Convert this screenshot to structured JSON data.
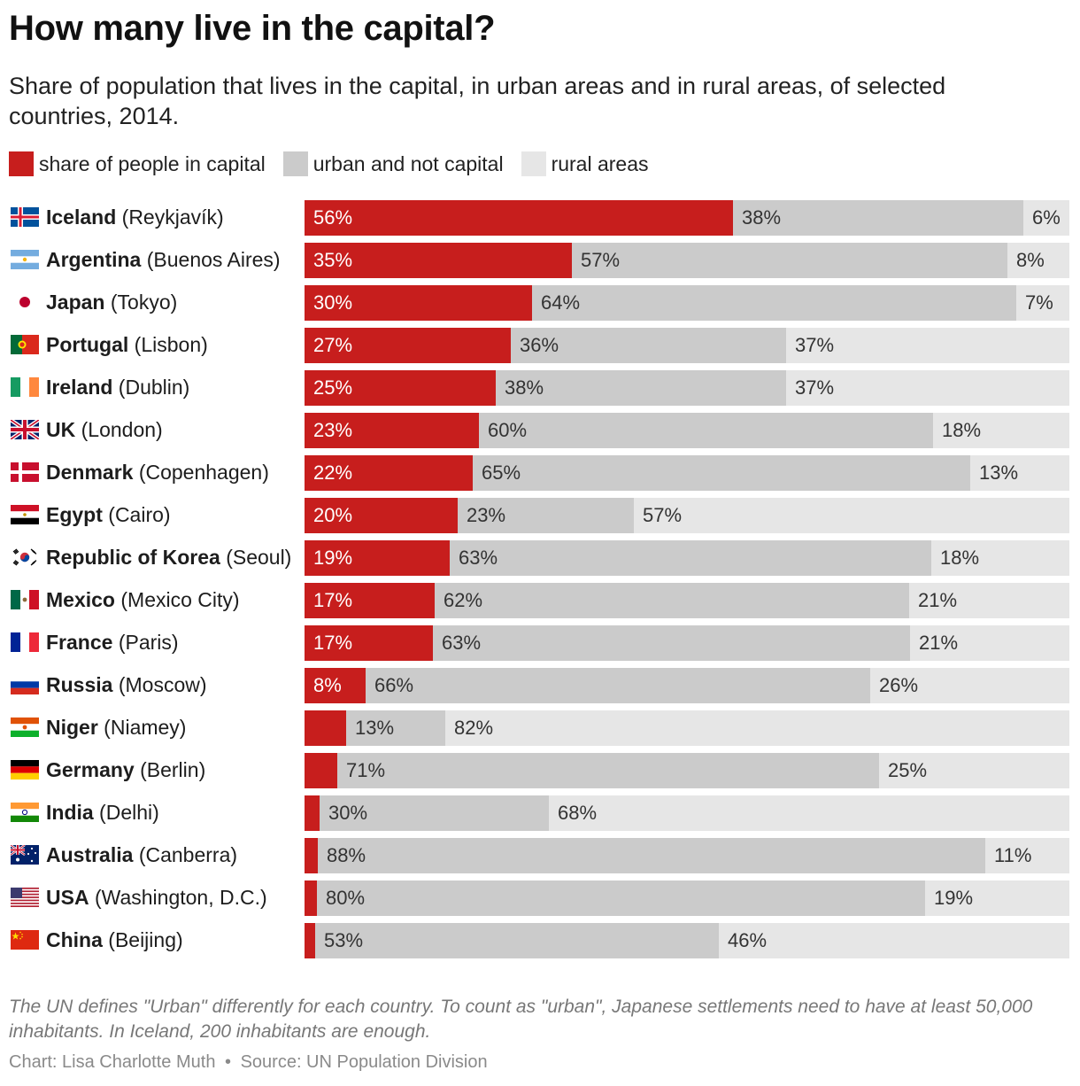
{
  "title": "How many live in the capital?",
  "subtitle": "Share of population that lives in the capital, in urban areas and in rural areas, of selected countries, 2014.",
  "legend": [
    {
      "label": "share of people in capital",
      "color": "#c71e1d"
    },
    {
      "label": "urban and not capital",
      "color": "#cbcbcb"
    },
    {
      "label": "rural areas",
      "color": "#e6e6e6"
    }
  ],
  "chart_data": {
    "type": "bar",
    "orientation": "horizontal",
    "stacked": true,
    "title": "How many live in the capital?",
    "subtitle": "Share of population that lives in the capital, in urban areas and in rural areas, of selected countries, 2014.",
    "unit": "%",
    "xlim": [
      0,
      100
    ],
    "grid": false,
    "legend_placement": "top-left",
    "rows": [
      {
        "country": "Iceland",
        "capital": "(Reykjavík)",
        "flag": "iceland-flag-icon",
        "capital_share": 56,
        "urban": 38,
        "rural": 6,
        "labels": [
          "56%",
          "38%",
          "6%"
        ]
      },
      {
        "country": "Argentina",
        "capital": "(Buenos Aires)",
        "flag": "argentina-flag-icon",
        "capital_share": 35,
        "urban": 57,
        "rural": 8,
        "labels": [
          "35%",
          "57%",
          "8%"
        ]
      },
      {
        "country": "Japan",
        "capital": "(Tokyo)",
        "flag": "japan-flag-icon",
        "capital_share": 30,
        "urban": 64,
        "rural": 7,
        "labels": [
          "30%",
          "64%",
          "7%"
        ]
      },
      {
        "country": "Portugal",
        "capital": "(Lisbon)",
        "flag": "portugal-flag-icon",
        "capital_share": 27,
        "urban": 36,
        "rural": 37,
        "labels": [
          "27%",
          "36%",
          "37%"
        ]
      },
      {
        "country": "Ireland",
        "capital": "(Dublin)",
        "flag": "ireland-flag-icon",
        "capital_share": 25,
        "urban": 38,
        "rural": 37,
        "labels": [
          "25%",
          "38%",
          "37%"
        ]
      },
      {
        "country": "UK",
        "capital": "(London)",
        "flag": "uk-flag-icon",
        "capital_share": 23,
        "urban": 60,
        "rural": 18,
        "labels": [
          "23%",
          "60%",
          "18%"
        ]
      },
      {
        "country": "Denmark",
        "capital": "(Copenhagen)",
        "flag": "denmark-flag-icon",
        "capital_share": 22,
        "urban": 65,
        "rural": 13,
        "labels": [
          "22%",
          "65%",
          "13%"
        ]
      },
      {
        "country": "Egypt",
        "capital": "(Cairo)",
        "flag": "egypt-flag-icon",
        "capital_share": 20,
        "urban": 23,
        "rural": 57,
        "labels": [
          "20%",
          "23%",
          "57%"
        ]
      },
      {
        "country": "Republic of Korea",
        "capital": "(Seoul)",
        "flag": "korea-flag-icon",
        "capital_share": 19,
        "urban": 63,
        "rural": 18,
        "labels": [
          "19%",
          "63%",
          "18%"
        ]
      },
      {
        "country": "Mexico",
        "capital": "(Mexico City)",
        "flag": "mexico-flag-icon",
        "capital_share": 17,
        "urban": 62,
        "rural": 21,
        "labels": [
          "17%",
          "62%",
          "21%"
        ]
      },
      {
        "country": "France",
        "capital": "(Paris)",
        "flag": "france-flag-icon",
        "capital_share": 17,
        "urban": 63,
        "rural": 21,
        "labels": [
          "17%",
          "63%",
          "21%"
        ]
      },
      {
        "country": "Russia",
        "capital": "(Moscow)",
        "flag": "russia-flag-icon",
        "capital_share": 8,
        "urban": 66,
        "rural": 26,
        "labels": [
          "8%",
          "66%",
          "26%"
        ]
      },
      {
        "country": "Niger",
        "capital": "(Niamey)",
        "flag": "niger-flag-icon",
        "capital_share": 5.5,
        "urban": 13,
        "rural": 82,
        "labels": [
          "",
          "13%",
          "82%"
        ]
      },
      {
        "country": "Germany",
        "capital": "(Berlin)",
        "flag": "germany-flag-icon",
        "capital_share": 4.3,
        "urban": 71,
        "rural": 25,
        "labels": [
          "",
          "71%",
          "25%"
        ]
      },
      {
        "country": "India",
        "capital": "(Delhi)",
        "flag": "india-flag-icon",
        "capital_share": 2,
        "urban": 30,
        "rural": 68,
        "labels": [
          "",
          "30%",
          "68%"
        ]
      },
      {
        "country": "Australia",
        "capital": "(Canberra)",
        "flag": "australia-flag-icon",
        "capital_share": 1.8,
        "urban": 88,
        "rural": 11,
        "labels": [
          "",
          "88%",
          "11%"
        ]
      },
      {
        "country": "USA",
        "capital": "(Washington, D.C.)",
        "flag": "usa-flag-icon",
        "capital_share": 1.6,
        "urban": 80,
        "rural": 19,
        "labels": [
          "",
          "80%",
          "19%"
        ]
      },
      {
        "country": "China",
        "capital": "(Beijing)",
        "flag": "china-flag-icon",
        "capital_share": 1.4,
        "urban": 53,
        "rural": 46,
        "labels": [
          "",
          "53%",
          "46%"
        ]
      }
    ]
  },
  "note": "The UN defines \"Urban\" differently for each country. To count as \"urban\", Japanese settlements need to have at least 50,000 inhabitants. In Iceland, 200 inhabitants are enough.",
  "credit": {
    "chart": "Chart: Lisa Charlotte Muth",
    "separator": "•",
    "source": "Source: UN Population Division"
  }
}
